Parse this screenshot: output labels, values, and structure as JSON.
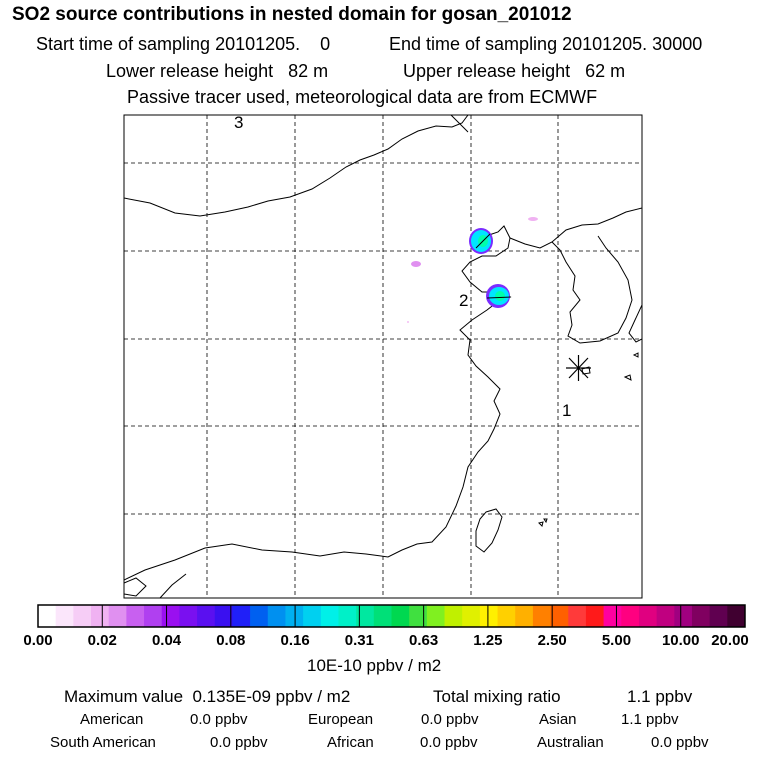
{
  "header": {
    "title": "SO2 source contributions in nested domain for gosan_201012",
    "start_label": "Start time of sampling 20101205.    0",
    "end_label": "End time of sampling 20101205. 30000",
    "lower_height": "Lower release height   82 m",
    "upper_height": "Upper release height   62 m",
    "note": "Passive tracer used, meteorological data are from ECMWF"
  },
  "map": {
    "region_labels": [
      "1",
      "2",
      "3"
    ],
    "receptor": "Gosan",
    "hotspot_colors": [
      "#00e5ff",
      "#7a2cff",
      "#00ffaa"
    ]
  },
  "colorbar": {
    "colors": [
      "#ffffff",
      "#fbe6fb",
      "#f6cdf6",
      "#f0b2f2",
      "#e090f0",
      "#c860f0",
      "#b040f0",
      "#9a10f0",
      "#7a10f0",
      "#5a10f0",
      "#3a10f0",
      "#2020f8",
      "#0060f0",
      "#0090f0",
      "#00b0f0",
      "#00d0f0",
      "#00f0e8",
      "#00f0c8",
      "#00e8a0",
      "#00e078",
      "#00d850",
      "#40e040",
      "#80f020",
      "#c0f000",
      "#e0f000",
      "#fff000",
      "#ffd000",
      "#ffb000",
      "#ff8000",
      "#ff6000",
      "#ff3a3a",
      "#ff1a1a",
      "#ff00a0",
      "#ff0080",
      "#e00080",
      "#c00080",
      "#a00080",
      "#800060",
      "#600050",
      "#400030"
    ],
    "tick_labels": [
      "0.00",
      "0.02",
      "0.04",
      "0.08",
      "0.16",
      "0.31",
      "0.63",
      "1.25",
      "2.50",
      "5.00",
      "10.00",
      "20.00"
    ],
    "unit": "10E-10 ppbv / m2"
  },
  "summary": {
    "max_value": "Maximum value  0.135E-09 ppbv / m2",
    "total_label": "Total mixing ratio",
    "total_value": "1.1 ppbv",
    "regions": [
      {
        "name": "American",
        "value": "0.0 ppbv"
      },
      {
        "name": "European",
        "value": "0.0 ppbv"
      },
      {
        "name": "Asian",
        "value": "1.1 ppbv"
      },
      {
        "name": "South American",
        "value": "0.0 ppbv"
      },
      {
        "name": "African",
        "value": "0.0 ppbv"
      },
      {
        "name": "Australian",
        "value": "0.0 ppbv"
      }
    ]
  }
}
